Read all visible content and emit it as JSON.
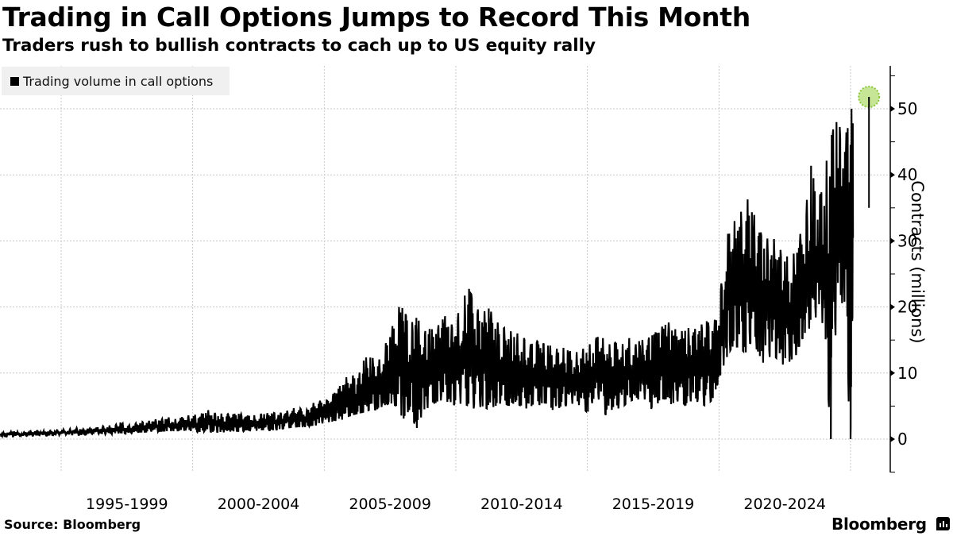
{
  "header": {
    "title": "Trading in Call Options Jumps to Record This Month",
    "subtitle": "Traders rush to bullish contracts to cach up to US equity rally"
  },
  "legend": {
    "label": "Trading volume in call options",
    "icon": "square-swatch"
  },
  "footer": {
    "source": "Source: Bloomberg",
    "brand": "Bloomberg",
    "brand_icon": "bloomberg-chart-icon"
  },
  "chart_data": {
    "type": "line",
    "title": "Trading in Call Options Jumps to Record This Month",
    "subtitle": "Traders rush to bullish contracts to cach up to US equity rally",
    "xlabel": "",
    "ylabel": "Contracts (millions)",
    "xlim": [
      1992.7,
      2025.8
    ],
    "ylim": [
      -5,
      57
    ],
    "grid": true,
    "legend_position": "top-left",
    "x_ticks": [
      1995,
      2000,
      2005,
      2010,
      2015,
      2020,
      2025
    ],
    "x_tick_labels": [
      {
        "label": "1995-1999",
        "center": 1997.5
      },
      {
        "label": "2000-2004",
        "center": 2002.5
      },
      {
        "label": "2005-2009",
        "center": 2007.5
      },
      {
        "label": "2010-2014",
        "center": 2012.5
      },
      {
        "label": "2015-2019",
        "center": 2017.5
      },
      {
        "label": "2020-2024",
        "center": 2022.5
      }
    ],
    "y_ticks": [
      0,
      10,
      20,
      30,
      40,
      50
    ],
    "y_minor_ticks": [
      -5,
      5,
      15,
      25,
      35,
      45,
      55
    ],
    "y_axis_side": "right",
    "highlight": {
      "x": 2025.7,
      "y": 51.8,
      "label": "record",
      "color": "#b8e07a"
    },
    "series": [
      {
        "name": "Trading volume in call options",
        "color": "#000000",
        "x": [
          1992.7,
          1993.0,
          1993.25,
          1993.5,
          1993.75,
          1994.0,
          1994.25,
          1994.5,
          1994.75,
          1995.0,
          1995.25,
          1995.5,
          1995.75,
          1996.0,
          1996.25,
          1996.5,
          1996.75,
          1997.0,
          1997.25,
          1997.5,
          1997.75,
          1998.0,
          1998.25,
          1998.5,
          1998.75,
          1999.0,
          1999.25,
          1999.5,
          1999.75,
          2000.0,
          2000.25,
          2000.5,
          2000.75,
          2001.0,
          2001.25,
          2001.5,
          2001.75,
          2002.0,
          2002.25,
          2002.5,
          2002.75,
          2003.0,
          2003.25,
          2003.5,
          2003.75,
          2004.0,
          2004.25,
          2004.5,
          2004.75,
          2005.0,
          2005.25,
          2005.5,
          2005.75,
          2006.0,
          2006.25,
          2006.5,
          2006.75,
          2007.0,
          2007.25,
          2007.5,
          2007.75,
          2008.0,
          2008.25,
          2008.5,
          2008.75,
          2009.0,
          2009.25,
          2009.5,
          2009.75,
          2010.0,
          2010.25,
          2010.5,
          2010.75,
          2011.0,
          2011.25,
          2011.5,
          2011.75,
          2012.0,
          2012.25,
          2012.5,
          2012.75,
          2013.0,
          2013.25,
          2013.5,
          2013.75,
          2014.0,
          2014.25,
          2014.5,
          2014.75,
          2015.0,
          2015.25,
          2015.5,
          2015.75,
          2016.0,
          2016.25,
          2016.5,
          2016.75,
          2017.0,
          2017.25,
          2017.5,
          2017.75,
          2018.0,
          2018.25,
          2018.5,
          2018.75,
          2019.0,
          2019.25,
          2019.5,
          2019.75,
          2020.0,
          2020.25,
          2020.5,
          2020.75,
          2021.0,
          2021.25,
          2021.5,
          2021.75,
          2022.0,
          2022.25,
          2022.5,
          2022.75,
          2023.0,
          2023.25,
          2023.5,
          2023.75,
          2024.0,
          2024.25,
          2024.5,
          2024.75,
          2025.0,
          2025.1,
          2025.25,
          2025.5,
          2025.6,
          2025.7
        ],
        "high": [
          1.0,
          1.1,
          1.2,
          1.0,
          1.2,
          1.3,
          1.2,
          1.3,
          1.3,
          1.5,
          1.4,
          1.8,
          1.5,
          1.6,
          1.7,
          1.9,
          2.1,
          2.0,
          2.6,
          2.0,
          2.3,
          2.6,
          2.6,
          3.1,
          2.8,
          3.5,
          2.9,
          3.3,
          3.4,
          3.9,
          3.3,
          4.6,
          4.0,
          3.9,
          3.8,
          3.8,
          3.9,
          3.6,
          3.5,
          3.8,
          3.9,
          4.0,
          3.9,
          4.2,
          4.5,
          5.0,
          4.0,
          5.2,
          6.0,
          5.5,
          6.5,
          7.5,
          9.0,
          10.0,
          9.0,
          12.0,
          13.0,
          11.0,
          14.0,
          15.5,
          20.0,
          20.0,
          17.0,
          19.0,
          16.0,
          17.0,
          16.0,
          19.5,
          17.0,
          18.0,
          21.0,
          23.0,
          20.0,
          19.0,
          20.0,
          18.0,
          17.0,
          16.5,
          16.0,
          16.0,
          14.0,
          15.0,
          14.5,
          14.5,
          13.5,
          14.0,
          13.5,
          13.0,
          13.5,
          14.0,
          15.0,
          16.0,
          14.0,
          15.0,
          13.5,
          16.0,
          14.0,
          15.0,
          15.0,
          16.0,
          16.5,
          18.0,
          17.0,
          16.0,
          17.0,
          16.5,
          17.0,
          18.0,
          17.0,
          20.0,
          30.0,
          33.0,
          33.0,
          37.0,
          35.0,
          32.0,
          30.0,
          31.0,
          29.0,
          28.0,
          27.0,
          30.0,
          33.0,
          42.0,
          35.0,
          40.0,
          46.0,
          48.5,
          45.0,
          49.0,
          51.8
        ],
        "low": [
          0.3,
          0.4,
          0.4,
          0.5,
          0.5,
          0.5,
          0.6,
          0.5,
          0.6,
          0.6,
          0.7,
          0.7,
          0.6,
          0.7,
          0.8,
          0.8,
          0.7,
          0.8,
          0.9,
          0.8,
          0.9,
          1.0,
          1.0,
          1.2,
          1.1,
          1.2,
          1.2,
          1.2,
          1.3,
          1.2,
          1.0,
          1.2,
          1.1,
          1.1,
          1.0,
          1.2,
          1.1,
          1.2,
          1.2,
          1.3,
          1.4,
          1.3,
          1.5,
          1.6,
          1.7,
          1.8,
          1.8,
          2.0,
          2.1,
          2.5,
          2.6,
          2.8,
          3.0,
          3.5,
          3.8,
          4.0,
          4.5,
          4.5,
          5.0,
          5.5,
          5.0,
          3.0,
          4.5,
          1.5,
          4.0,
          5.0,
          5.5,
          6.0,
          5.5,
          5.0,
          5.5,
          5.0,
          4.5,
          5.0,
          4.5,
          5.0,
          5.5,
          5.0,
          5.5,
          5.0,
          4.5,
          5.5,
          5.0,
          5.5,
          4.0,
          5.0,
          5.0,
          5.5,
          5.0,
          4.0,
          6.0,
          6.0,
          3.0,
          5.0,
          4.5,
          5.5,
          6.0,
          6.0,
          6.0,
          4.0,
          6.0,
          6.0,
          5.0,
          6.0,
          5.0,
          6.0,
          5.5,
          5.0,
          6.0,
          9.0,
          12.0,
          14.0,
          14.0,
          13.0,
          15.0,
          13.0,
          11.0,
          13.0,
          12.0,
          11.0,
          12.0,
          13.0,
          16.0,
          17.0,
          19.0,
          17.0,
          0.0,
          22.0,
          20.0,
          0.0,
          26.0
        ]
      }
    ]
  }
}
